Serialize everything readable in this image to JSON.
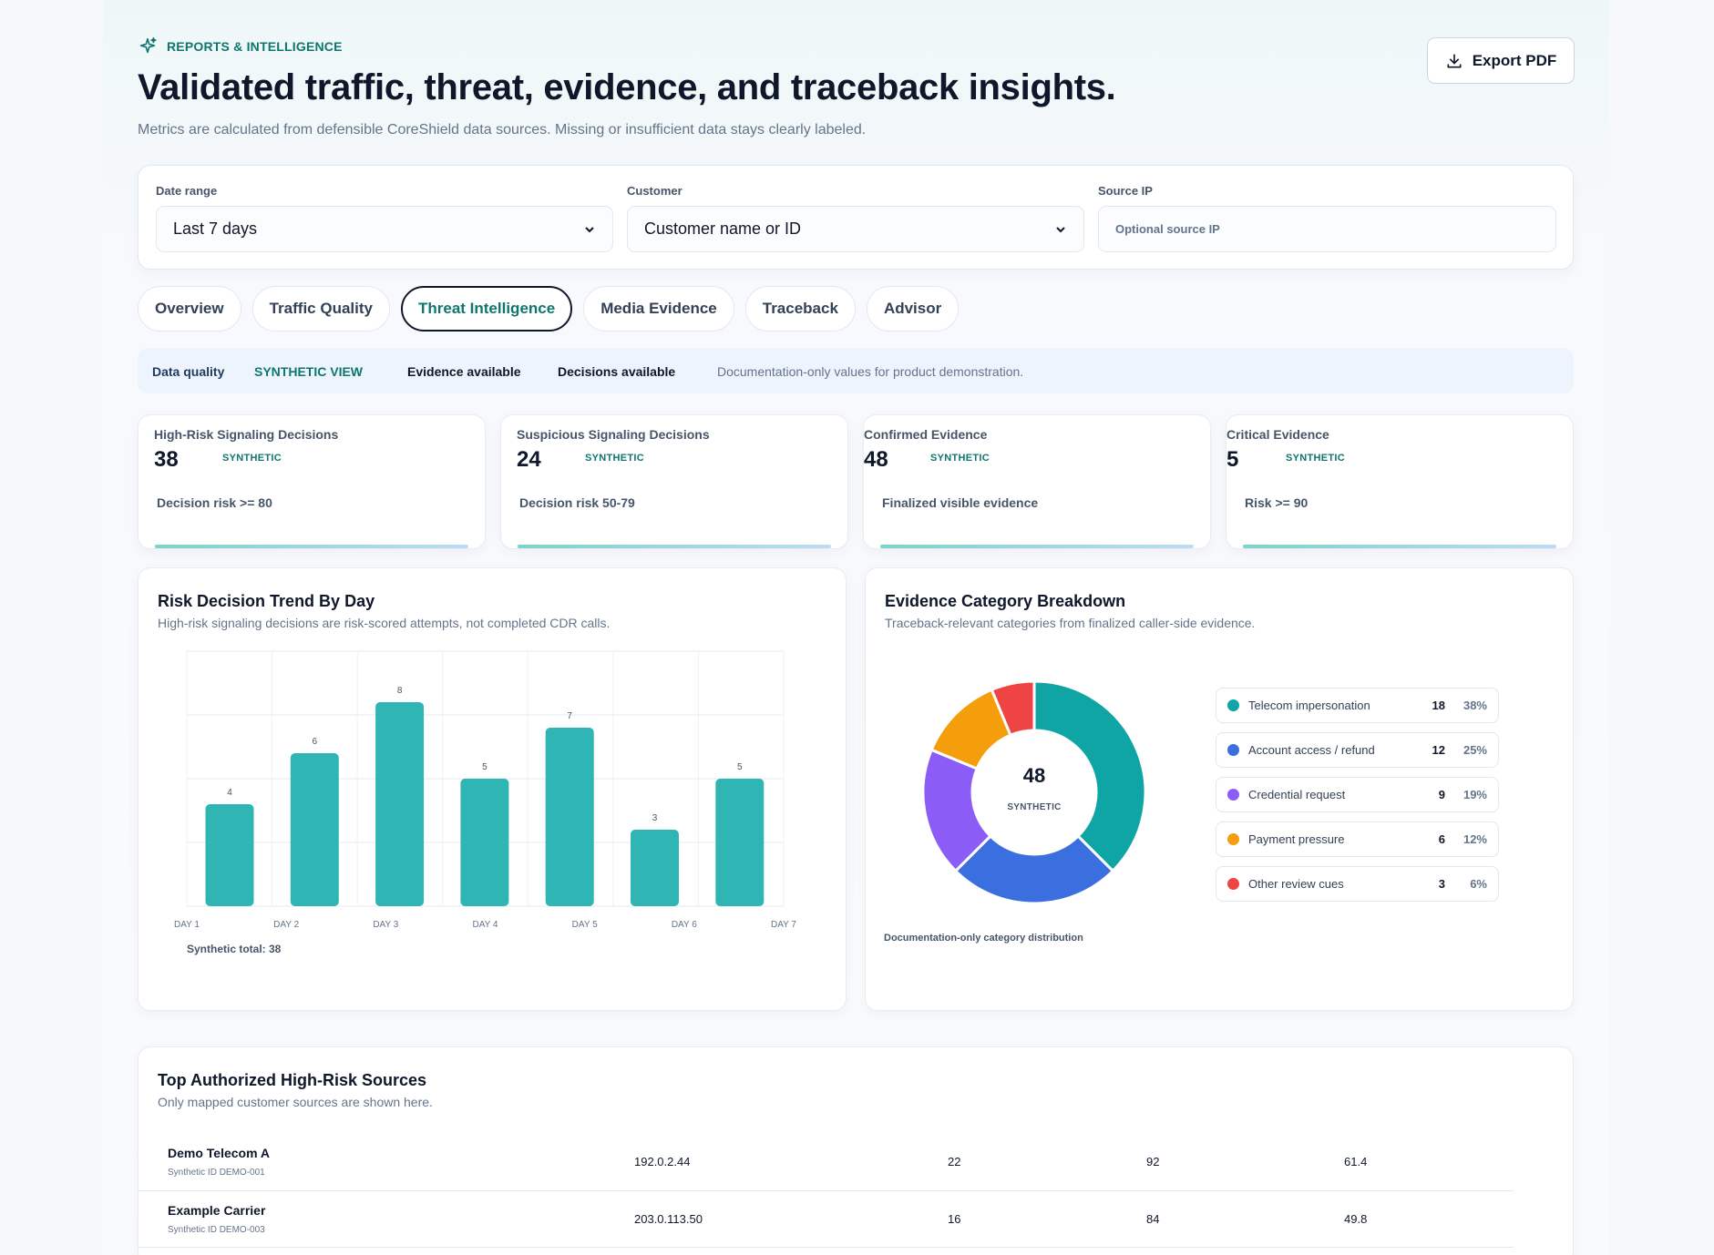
{
  "header": {
    "eyebrow": "REPORTS & INTELLIGENCE",
    "title": "Validated traffic, threat, evidence, and traceback insights.",
    "subtitle": "Metrics are calculated from defensible CoreShield data sources. Missing or insufficient data stays clearly labeled.",
    "export_label": "Export PDF"
  },
  "filters": {
    "date_range": {
      "label": "Date range",
      "value": "Last 7 days"
    },
    "customer": {
      "label": "Customer",
      "value": "Customer name or ID"
    },
    "source_ip": {
      "label": "Source IP",
      "placeholder": "Optional source IP"
    }
  },
  "tabs": [
    {
      "label": "Overview"
    },
    {
      "label": "Traffic Quality"
    },
    {
      "label": "Threat Intelligence",
      "active": true
    },
    {
      "label": "Media Evidence"
    },
    {
      "label": "Traceback"
    },
    {
      "label": "Advisor"
    }
  ],
  "quality": {
    "label": "Data quality",
    "view": "SYNTHETIC VIEW",
    "evidence": "Evidence available",
    "decisions": "Decisions available",
    "note": "Documentation-only values for product demonstration."
  },
  "kpis": [
    {
      "label": "High-Risk Signaling Decisions",
      "value": "38",
      "tag": "SYNTHETIC",
      "caption": "Decision risk >= 80"
    },
    {
      "label": "Suspicious Signaling Decisions",
      "value": "24",
      "tag": "SYNTHETIC",
      "caption": "Decision risk 50-79"
    },
    {
      "label": "Confirmed Evidence",
      "value": "48",
      "tag": "SYNTHETIC",
      "caption": "Finalized visible evidence"
    },
    {
      "label": "Critical Evidence",
      "value": "5",
      "tag": "SYNTHETIC",
      "caption": "Risk >= 90"
    }
  ],
  "trend_card": {
    "title": "Risk Decision Trend By Day",
    "subtitle": "High-risk signaling decisions are risk-scored attempts, not completed CDR calls.",
    "total": "Synthetic total: 38"
  },
  "breakdown_card": {
    "title": "Evidence Category Breakdown",
    "subtitle": "Traceback-relevant categories from finalized caller-side evidence.",
    "center_value": "48",
    "center_label": "SYNTHETIC",
    "footnote": "Documentation-only category distribution"
  },
  "chart_data": [
    {
      "type": "bar",
      "categories": [
        "DAY 1",
        "DAY 2",
        "DAY 3",
        "DAY 4",
        "DAY 5",
        "DAY 6",
        "DAY 7"
      ],
      "values": [
        4,
        6,
        8,
        5,
        7,
        3,
        5
      ],
      "color": "#2fb6b4",
      "title": "Risk Decision Trend By Day",
      "grid": true
    },
    {
      "type": "pie",
      "donut": true,
      "categories": [
        "Telecom impersonation",
        "Account access / refund",
        "Credential request",
        "Payment pressure",
        "Other review cues"
      ],
      "values": [
        18,
        12,
        9,
        6,
        3
      ],
      "percents": [
        "38%",
        "25%",
        "19%",
        "12%",
        "6%"
      ],
      "colors": [
        "#0ea5a4",
        "#3b6fe0",
        "#8b5cf6",
        "#f59e0b",
        "#ef4444"
      ],
      "title": "Evidence Category Breakdown"
    }
  ],
  "sources_card": {
    "title": "Top Authorized High-Risk Sources",
    "subtitle": "Only mapped customer sources are shown here.",
    "rows": [
      {
        "name": "Demo Telecom A",
        "id": "Synthetic ID DEMO-001",
        "ip": "192.0.2.44",
        "count": "22",
        "risk": "92",
        "score": "61.4"
      },
      {
        "name": "Example Carrier",
        "id": "Synthetic ID DEMO-003",
        "ip": "203.0.113.50",
        "count": "16",
        "risk": "84",
        "score": "49.8"
      }
    ]
  }
}
